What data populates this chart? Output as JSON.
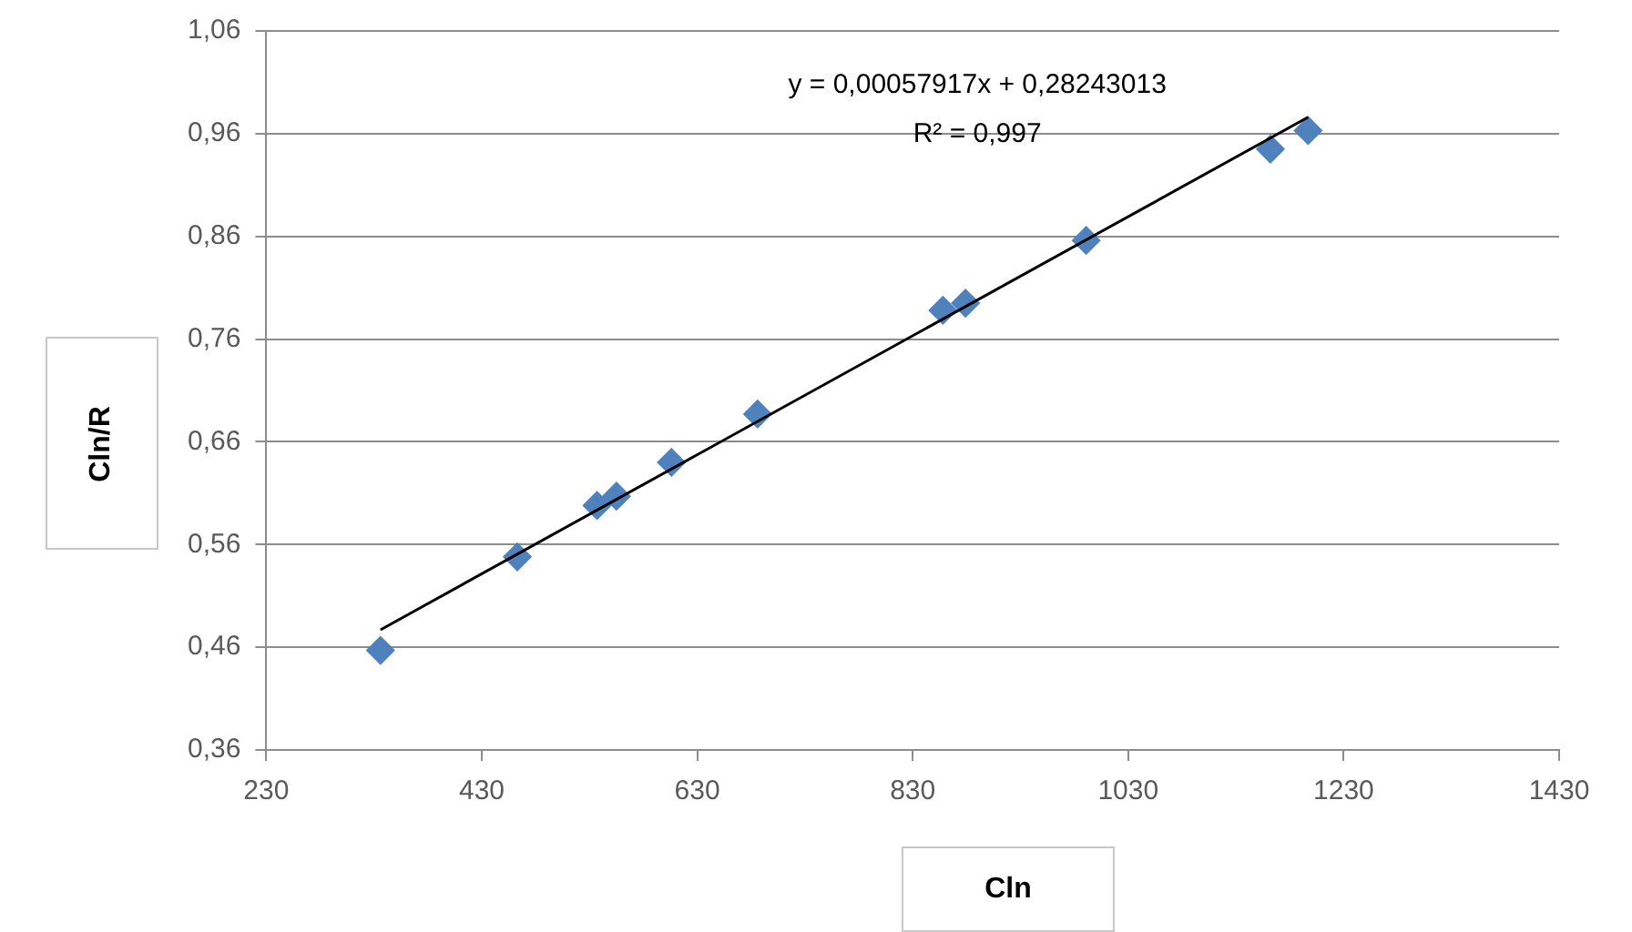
{
  "chart_data": {
    "type": "scatter",
    "xlabel": "Cln",
    "ylabel": "Cln/R",
    "annotations": [
      "y = 0,00057917x + 0,28243013",
      "R² = 0,997"
    ],
    "xlim": [
      230,
      1430
    ],
    "xticks": [
      230,
      430,
      630,
      830,
      1030,
      1230,
      1430
    ],
    "ylim": [
      0.36,
      1.06
    ],
    "yticks": [
      {
        "value": 0.36,
        "label": "0,36"
      },
      {
        "value": 0.46,
        "label": "0,46"
      },
      {
        "value": 0.56,
        "label": "0,56"
      },
      {
        "value": 0.66,
        "label": "0,66"
      },
      {
        "value": 0.76,
        "label": "0,76"
      },
      {
        "value": 0.86,
        "label": "0,86"
      },
      {
        "value": 0.96,
        "label": "0,96"
      },
      {
        "value": 1.06,
        "label": "1,06"
      }
    ],
    "grid": "y",
    "legend": false,
    "marker": "diamond",
    "series": [
      {
        "type": "scatter",
        "color": "#4f81bd",
        "x": [
          336,
          463,
          537,
          555,
          606,
          686,
          858,
          879,
          991,
          1162,
          1197
        ],
        "values": [
          0.457,
          0.548,
          0.598,
          0.607,
          0.64,
          0.687,
          0.788,
          0.795,
          0.856,
          0.945,
          0.963
        ]
      },
      {
        "type": "line",
        "color": "#000000",
        "marker": "none",
        "x": [
          336,
          1197
        ],
        "values": [
          0.477,
          0.976
        ]
      }
    ]
  }
}
